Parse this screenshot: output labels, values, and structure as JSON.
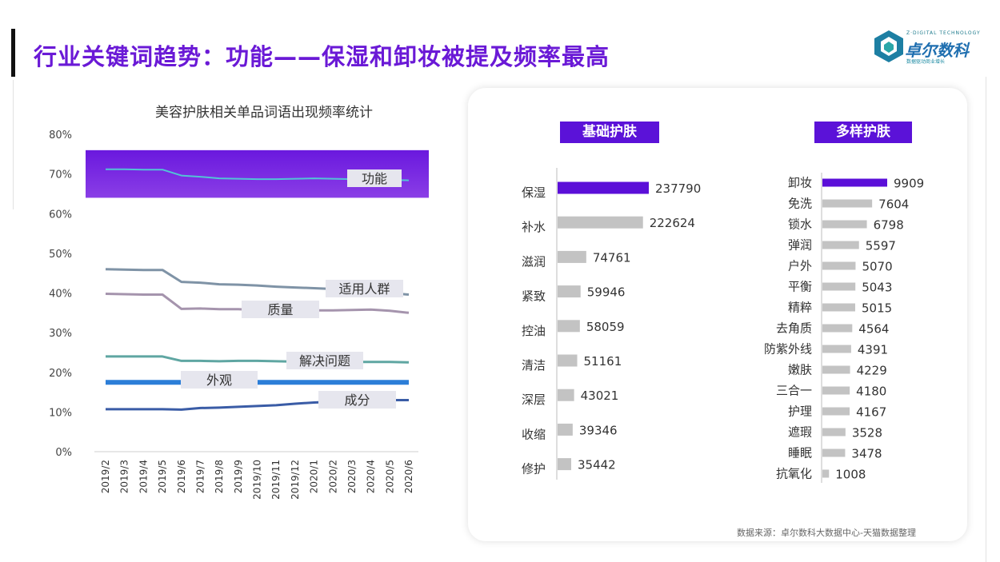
{
  "page": {
    "title": "行业关键词趋势：功能——保湿和卸妆被提及频率最高",
    "source": "数据来源：卓尔数科大数据中心-天猫数据整理",
    "logo": {
      "name": "卓尔数科",
      "top_text": "Z·DIGITAL TECHNOLOGY",
      "sub_text": "数据驱动商业增长"
    },
    "watermark": "卓尔数科"
  },
  "chart_data": [
    {
      "type": "line",
      "title": "美容护肤相关单品词语出现频率统计",
      "x": [
        "2019/2",
        "2019/3",
        "2019/4",
        "2019/5",
        "2019/6",
        "2019/7",
        "2019/8",
        "2019/9",
        "2019/10",
        "2019/11",
        "2019/12",
        "2020/1",
        "2020/2",
        "2020/3",
        "2020/4",
        "2020/5",
        "2020/6"
      ],
      "ylim": [
        0,
        80
      ],
      "yticks": [
        "0%",
        "10%",
        "20%",
        "30%",
        "40%",
        "50%",
        "60%",
        "70%",
        "80%"
      ],
      "highlight_band": {
        "from": 64,
        "to": 76,
        "color": "#6f1de0"
      },
      "series": [
        {
          "name": "功能",
          "color": "#52c3d6",
          "width": 2,
          "values": [
            71.2,
            71.2,
            71.1,
            71.1,
            69.6,
            69.3,
            68.9,
            68.8,
            68.7,
            68.7,
            68.8,
            68.9,
            68.8,
            68.7,
            68.6,
            68.5,
            68.4
          ]
        },
        {
          "name": "适用人群",
          "color": "#7f93a6",
          "width": 3,
          "values": [
            46.0,
            45.9,
            45.8,
            45.8,
            42.8,
            42.6,
            42.2,
            42.1,
            41.9,
            41.6,
            41.4,
            41.2,
            41.0,
            40.7,
            40.3,
            40.0,
            39.6
          ]
        },
        {
          "name": "质量",
          "color": "#a594ad",
          "width": 3,
          "values": [
            39.8,
            39.7,
            39.6,
            39.6,
            36.0,
            36.1,
            35.9,
            35.9,
            35.7,
            35.6,
            35.6,
            35.6,
            35.6,
            35.7,
            35.8,
            35.5,
            35.0
          ]
        },
        {
          "name": "解决问题",
          "color": "#5fa6a2",
          "width": 3,
          "values": [
            24.0,
            24.0,
            24.0,
            24.0,
            22.9,
            22.9,
            22.8,
            22.9,
            22.9,
            22.8,
            22.7,
            22.7,
            22.7,
            22.6,
            22.6,
            22.6,
            22.5
          ]
        },
        {
          "name": "外观",
          "color": "#2c7ed8",
          "width": 6,
          "values": [
            17.5,
            17.5,
            17.5,
            17.5,
            17.5,
            17.5,
            17.5,
            17.5,
            17.5,
            17.5,
            17.5,
            17.5,
            17.5,
            17.5,
            17.5,
            17.5,
            17.5
          ]
        },
        {
          "name": "成分",
          "color": "#3a5ca6",
          "width": 3,
          "values": [
            10.7,
            10.7,
            10.7,
            10.7,
            10.6,
            11.0,
            11.1,
            11.3,
            11.5,
            11.7,
            12.1,
            12.4,
            12.6,
            12.8,
            12.9,
            13.0,
            13.0
          ]
        }
      ]
    },
    {
      "type": "bar",
      "title": "基础护肤",
      "categories": [
        "保湿",
        "补水",
        "滋润",
        "紧致",
        "控油",
        "清洁",
        "深层",
        "收缩",
        "修护"
      ],
      "values": [
        237790,
        222624,
        74761,
        59946,
        58059,
        51161,
        43021,
        39346,
        35442
      ],
      "highlight_color": "#5b0fd8",
      "bar_color": "#c3c3c3"
    },
    {
      "type": "bar",
      "title": "多样护肤",
      "categories": [
        "卸妆",
        "免洗",
        "锁水",
        "弹润",
        "户外",
        "平衡",
        "精粹",
        "去角质",
        "防紫外线",
        "嫩肤",
        "三合一",
        "护理",
        "遮瑕",
        "睡眠",
        "抗氧化"
      ],
      "values": [
        9909,
        7604,
        6798,
        5597,
        5070,
        5043,
        5015,
        4564,
        4391,
        4229,
        4180,
        4167,
        3528,
        3478,
        1008
      ],
      "highlight_color": "#5b0fd8",
      "bar_color": "#c3c3c3"
    }
  ]
}
